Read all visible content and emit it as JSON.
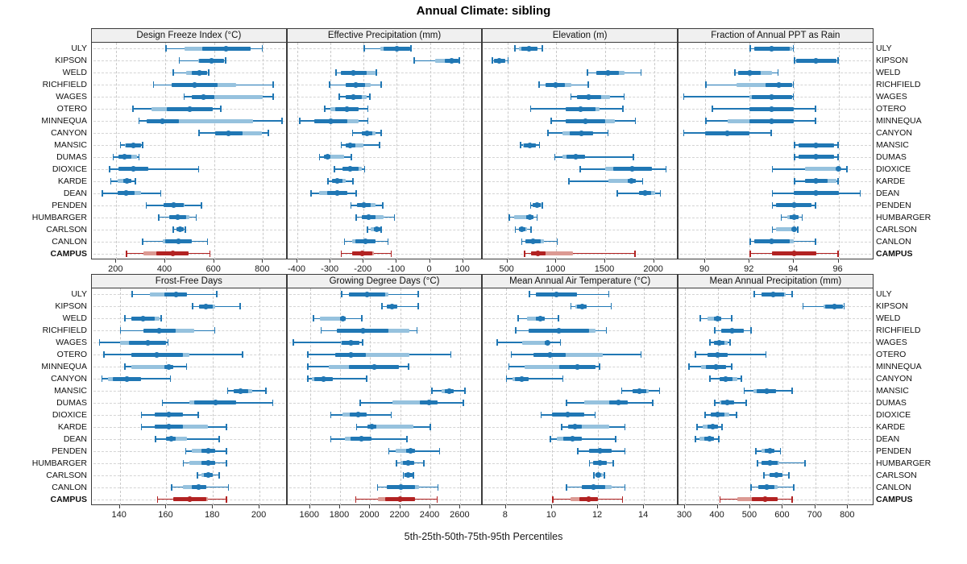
{
  "title": "Annual Climate: sibling",
  "footer": "5th-25th-50th-75th-95th Percentiles",
  "colors": {
    "station_main": "#2077b4",
    "station_light": "#96c2de",
    "highlight_main": "#b22222",
    "highlight_light": "#dc9a93",
    "panel_header_bg": "#f0f0f0",
    "panel_border": "#3c3c3c",
    "grid": "#c9c9c9"
  },
  "stations": [
    "ULY",
    "KIPSON",
    "WELD",
    "RICHFIELD",
    "WAGES",
    "OTERO",
    "MINNEQUA",
    "CANYON",
    "MANSIC",
    "DUMAS",
    "DIOXICE",
    "KARDE",
    "DEAN",
    "PENDEN",
    "HUMBARGER",
    "CARLSON",
    "CANLON",
    "CAMPUS"
  ],
  "highlight_station": "CAMPUS",
  "percentile_labels": [
    "5th",
    "25th",
    "50th",
    "75th",
    "95th"
  ],
  "chart_data": [
    {
      "type": "interval",
      "title": "Design Freeze Index (°C)",
      "xlim": [
        100,
        900
      ],
      "xticks": [
        200,
        400,
        600,
        800
      ],
      "values": [
        [
          400,
          480,
          650,
          750,
          800
        ],
        [
          455,
          535,
          590,
          640,
          650
        ],
        [
          430,
          485,
          540,
          570,
          580
        ],
        [
          350,
          425,
          520,
          690,
          845
        ],
        [
          475,
          510,
          555,
          800,
          845
        ],
        [
          265,
          345,
          500,
          595,
          630
        ],
        [
          290,
          325,
          390,
          760,
          880
        ],
        [
          535,
          605,
          660,
          795,
          825
        ],
        [
          215,
          235,
          270,
          300,
          310
        ],
        [
          185,
          210,
          235,
          285,
          295
        ],
        [
          170,
          210,
          270,
          330,
          540
        ],
        [
          175,
          205,
          245,
          260,
          280
        ],
        [
          140,
          205,
          240,
          300,
          385
        ],
        [
          320,
          395,
          435,
          480,
          550
        ],
        [
          370,
          415,
          450,
          500,
          530
        ],
        [
          430,
          445,
          460,
          475,
          485
        ],
        [
          305,
          390,
          455,
          510,
          575
        ],
        [
          240,
          310,
          430,
          495,
          585
        ]
      ]
    },
    {
      "type": "interval",
      "title": "Effective Precipitation (mm)",
      "xlim": [
        -430,
        160
      ],
      "xticks": [
        -400,
        -300,
        -200,
        -100,
        0,
        100
      ],
      "values": [
        [
          -200,
          -150,
          -100,
          -60,
          -55
        ],
        [
          -50,
          15,
          65,
          85,
          90
        ],
        [
          -285,
          -270,
          -230,
          -165,
          -160
        ],
        [
          -305,
          -255,
          -225,
          -180,
          -145
        ],
        [
          -275,
          -255,
          -230,
          -190,
          -180
        ],
        [
          -320,
          -300,
          -250,
          -215,
          -185
        ],
        [
          -395,
          -350,
          -300,
          -215,
          -185
        ],
        [
          -235,
          -205,
          -190,
          -165,
          -145
        ],
        [
          -270,
          -255,
          -240,
          -200,
          -150
        ],
        [
          -335,
          -320,
          -310,
          -260,
          -235
        ],
        [
          -290,
          -265,
          -240,
          -205,
          -195
        ],
        [
          -310,
          -295,
          -280,
          -255,
          -230
        ],
        [
          -360,
          -335,
          -280,
          -250,
          -220
        ],
        [
          -240,
          -220,
          -200,
          -165,
          -140
        ],
        [
          -225,
          -205,
          -185,
          -140,
          -105
        ],
        [
          -190,
          -180,
          -160,
          -150,
          -145
        ],
        [
          -260,
          -235,
          -195,
          -165,
          -125
        ],
        [
          -270,
          -235,
          -205,
          -170,
          -115
        ]
      ]
    },
    {
      "type": "interval",
      "title": "Elevation (m)",
      "xlim": [
        250,
        2250
      ],
      "xticks": [
        500,
        1000,
        1500,
        2000
      ],
      "values": [
        [
          570,
          615,
          725,
          810,
          865
        ],
        [
          340,
          365,
          420,
          475,
          515
        ],
        [
          1310,
          1410,
          1525,
          1700,
          1875
        ],
        [
          820,
          890,
          990,
          1155,
          1335
        ],
        [
          1145,
          1210,
          1335,
          1550,
          1700
        ],
        [
          730,
          1100,
          1250,
          1445,
          1690
        ],
        [
          940,
          1100,
          1300,
          1600,
          1815
        ],
        [
          910,
          1060,
          1260,
          1380,
          1535
        ],
        [
          630,
          660,
          730,
          790,
          835
        ],
        [
          980,
          1060,
          1200,
          1295,
          1795
        ],
        [
          1240,
          1500,
          1780,
          1980,
          2130
        ],
        [
          1125,
          1530,
          1770,
          1810,
          1890
        ],
        [
          1615,
          1850,
          1910,
          2015,
          2070
        ],
        [
          730,
          755,
          800,
          850,
          865
        ],
        [
          515,
          570,
          730,
          765,
          810
        ],
        [
          575,
          615,
          650,
          700,
          750
        ],
        [
          640,
          685,
          765,
          870,
          1015
        ],
        [
          670,
          740,
          815,
          1170,
          1810
        ]
      ]
    },
    {
      "type": "interval",
      "title": "Fraction of Annual PPT as Rain",
      "xlim": [
        88.8,
        97.6
      ],
      "xticks": [
        90,
        92,
        94,
        96
      ],
      "values": [
        [
          92,
          92.2,
          93,
          93.9,
          94
        ],
        [
          94,
          94.1,
          95,
          95.9,
          96
        ],
        [
          91.3,
          91.5,
          92,
          93,
          93.3
        ],
        [
          90,
          91.4,
          93.3,
          93.9,
          94
        ],
        [
          89,
          92,
          93,
          93.9,
          94
        ],
        [
          90.3,
          92,
          93,
          94,
          95
        ],
        [
          90,
          91,
          93,
          94,
          95
        ],
        [
          89,
          90,
          91,
          92,
          93
        ],
        [
          94,
          94.2,
          95,
          95.8,
          96
        ],
        [
          94,
          94.2,
          95,
          95.8,
          96
        ],
        [
          93,
          94.5,
          96,
          96.1,
          96.4
        ],
        [
          94,
          94.5,
          95,
          95.9,
          96
        ],
        [
          93,
          94,
          95,
          96,
          97
        ],
        [
          93,
          93.2,
          94,
          94.8,
          95
        ],
        [
          93.4,
          93.7,
          94,
          94.2,
          94.4
        ],
        [
          93,
          93.2,
          94,
          94.1,
          94.2
        ],
        [
          92,
          92.2,
          93,
          94,
          95
        ],
        [
          92,
          93,
          94,
          95,
          96
        ]
      ]
    },
    {
      "type": "interval",
      "title": "Frost-Free Days",
      "xlim": [
        128,
        212
      ],
      "xticks": [
        140,
        160,
        180,
        200
      ],
      "values": [
        [
          145,
          153,
          164,
          169,
          182
        ],
        [
          171,
          174,
          177,
          181,
          192
        ],
        [
          142,
          145,
          150,
          157,
          158
        ],
        [
          140,
          150,
          157,
          172,
          181
        ],
        [
          131,
          140,
          152,
          160,
          161
        ],
        [
          133,
          145,
          156,
          170,
          193
        ],
        [
          142,
          145,
          161,
          163,
          169
        ],
        [
          132,
          135,
          143,
          149,
          162
        ],
        [
          186,
          189,
          192,
          197,
          203
        ],
        [
          158,
          170,
          181,
          190,
          206
        ],
        [
          149,
          155,
          161,
          167,
          174
        ],
        [
          149,
          155,
          161,
          178,
          186
        ],
        [
          155,
          160,
          162,
          169,
          183
        ],
        [
          168,
          171,
          178,
          181,
          186
        ],
        [
          167,
          170,
          178,
          181,
          186
        ],
        [
          173,
          175,
          178,
          180,
          183
        ],
        [
          162,
          167,
          174,
          177,
          187
        ],
        [
          156,
          163,
          170,
          178,
          186
        ]
      ]
    },
    {
      "type": "interval",
      "title": "Growing Degree Days (°C)",
      "xlim": [
        1450,
        2750
      ],
      "xticks": [
        1600,
        1800,
        2000,
        2200,
        2400,
        2600
      ],
      "values": [
        [
          1805,
          1860,
          1980,
          2120,
          2325
        ],
        [
          2075,
          2110,
          2145,
          2180,
          2325
        ],
        [
          1620,
          1665,
          1820,
          1840,
          1950
        ],
        [
          1670,
          1780,
          1950,
          2260,
          2315
        ],
        [
          1485,
          1805,
          1870,
          1930,
          1955
        ],
        [
          1580,
          1770,
          1870,
          2260,
          2540
        ],
        [
          1580,
          1725,
          2025,
          2190,
          2260
        ],
        [
          1580,
          1610,
          1690,
          1750,
          1980
        ],
        [
          2405,
          2475,
          2525,
          2555,
          2635
        ],
        [
          1930,
          2150,
          2390,
          2450,
          2625
        ],
        [
          1735,
          1815,
          1920,
          1975,
          2145
        ],
        [
          1905,
          1980,
          2010,
          2290,
          2405
        ],
        [
          1735,
          1830,
          1940,
          2010,
          2250
        ],
        [
          2120,
          2170,
          2270,
          2300,
          2465
        ],
        [
          2170,
          2200,
          2255,
          2295,
          2360
        ],
        [
          2215,
          2225,
          2255,
          2280,
          2290
        ],
        [
          2045,
          2110,
          2205,
          2325,
          2455
        ],
        [
          1900,
          2050,
          2200,
          2300,
          2450
        ]
      ]
    },
    {
      "type": "interval",
      "title": "Mean Annual Air Temperature (°C)",
      "xlim": [
        7,
        15.5
      ],
      "xticks": [
        8,
        10,
        12,
        14
      ],
      "values": [
        [
          9.0,
          9.3,
          10.2,
          11.1,
          12.5
        ],
        [
          10.8,
          11.0,
          11.3,
          11.5,
          12.6
        ],
        [
          8.5,
          8.9,
          9.5,
          9.7,
          10.3
        ],
        [
          8.4,
          9.0,
          10.3,
          11.9,
          12.4
        ],
        [
          7.6,
          8.7,
          9.8,
          9.9,
          10.4
        ],
        [
          8.2,
          9.2,
          9.9,
          12.2,
          13.9
        ],
        [
          8.1,
          8.8,
          11.1,
          11.9,
          12.1
        ],
        [
          8.0,
          8.3,
          8.7,
          9.0,
          10.5
        ],
        [
          13.0,
          13.5,
          13.8,
          14.2,
          14.7
        ],
        [
          10.6,
          11.4,
          12.9,
          13.3,
          14.4
        ],
        [
          9.5,
          10.0,
          10.7,
          11.4,
          11.9
        ],
        [
          10.4,
          10.7,
          11.0,
          12.5,
          13.2
        ],
        [
          9.9,
          10.2,
          10.9,
          11.3,
          12.8
        ],
        [
          11.1,
          11.6,
          12.1,
          12.6,
          13.2
        ],
        [
          11.6,
          11.8,
          12.1,
          12.4,
          12.7
        ],
        [
          11.8,
          11.9,
          12.0,
          12.2,
          12.3
        ],
        [
          10.6,
          11.3,
          11.8,
          12.6,
          13.2
        ],
        [
          10.0,
          10.8,
          11.6,
          12.0,
          13.1
        ]
      ]
    },
    {
      "type": "interval",
      "title": "Mean Annual Precipitation (mm)",
      "xlim": [
        280,
        880
      ],
      "xticks": [
        300,
        400,
        500,
        600,
        700,
        800
      ],
      "values": [
        [
          510,
          535,
          570,
          610,
          630
        ],
        [
          660,
          725,
          758,
          785,
          790
        ],
        [
          345,
          370,
          400,
          410,
          445
        ],
        [
          390,
          410,
          445,
          480,
          505
        ],
        [
          375,
          390,
          405,
          430,
          440
        ],
        [
          330,
          370,
          400,
          430,
          550
        ],
        [
          310,
          350,
          395,
          425,
          445
        ],
        [
          375,
          405,
          425,
          460,
          475
        ],
        [
          480,
          510,
          550,
          580,
          630
        ],
        [
          390,
          405,
          430,
          450,
          490
        ],
        [
          360,
          380,
          400,
          435,
          460
        ],
        [
          335,
          355,
          385,
          400,
          415
        ],
        [
          330,
          345,
          375,
          390,
          405
        ],
        [
          515,
          535,
          560,
          575,
          595
        ],
        [
          520,
          535,
          560,
          590,
          670
        ],
        [
          540,
          560,
          580,
          600,
          620
        ],
        [
          500,
          525,
          550,
          585,
          635
        ],
        [
          405,
          460,
          545,
          585,
          630
        ]
      ]
    }
  ]
}
